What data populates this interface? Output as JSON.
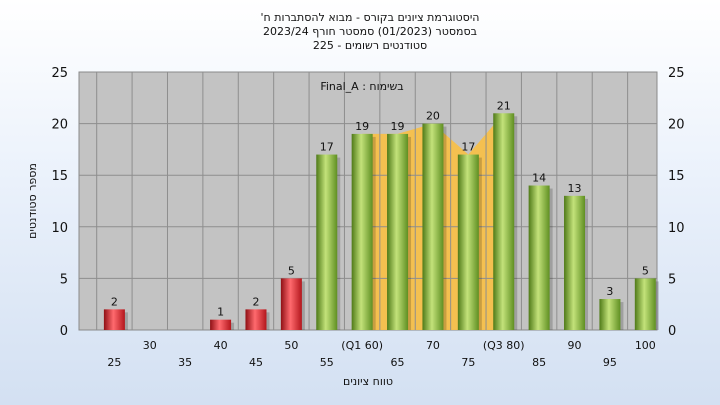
{
  "chart_data": {
    "type": "bar",
    "title_lines": [
      "היסטוגרמת ציונים בקורס - מבוא להסתברות ח'",
      "בסמסטר  (01/2023)  סמסטר חורף  2023/24",
      "סטודנטים רשומים - 225"
    ],
    "annotation": "בשימוח : Final_A",
    "xlabel": "טווח ציונים",
    "ylabel": "מספר סטודנטים",
    "ylim": [
      0,
      25
    ],
    "yticks": [
      0,
      5,
      10,
      15,
      20,
      25
    ],
    "grid": true,
    "x_tick_labels": [
      {
        "label": "25",
        "row": 2
      },
      {
        "label": "30",
        "row": 1
      },
      {
        "label": "35",
        "row": 2
      },
      {
        "label": "40",
        "row": 1
      },
      {
        "label": "45",
        "row": 2
      },
      {
        "label": "50",
        "row": 1
      },
      {
        "label": "55",
        "row": 2
      },
      {
        "label": "(Q1 60)",
        "row": 1
      },
      {
        "label": "65",
        "row": 2
      },
      {
        "label": "70",
        "row": 1
      },
      {
        "label": "75",
        "row": 2
      },
      {
        "label": "(Q3 80)",
        "row": 1
      },
      {
        "label": "85",
        "row": 2
      },
      {
        "label": "90",
        "row": 1
      },
      {
        "label": "95",
        "row": 2
      },
      {
        "label": "100",
        "row": 1
      }
    ],
    "values": [
      2,
      0,
      0,
      1,
      2,
      5,
      17,
      19,
      19,
      20,
      17,
      21,
      14,
      13,
      3,
      5
    ],
    "bar_colors": [
      "red",
      "red",
      "red",
      "red",
      "red",
      "red",
      "green",
      "green",
      "green",
      "green",
      "green",
      "green",
      "green",
      "green",
      "green",
      "green"
    ],
    "iqr_band": {
      "from_index": 7,
      "to_index": 11,
      "color": "#f7c04a"
    },
    "colors": {
      "red": "#e8333a",
      "green": "#8cbf3f",
      "plot_bg": "#c3c3c3",
      "band": "#f7c04a"
    }
  }
}
